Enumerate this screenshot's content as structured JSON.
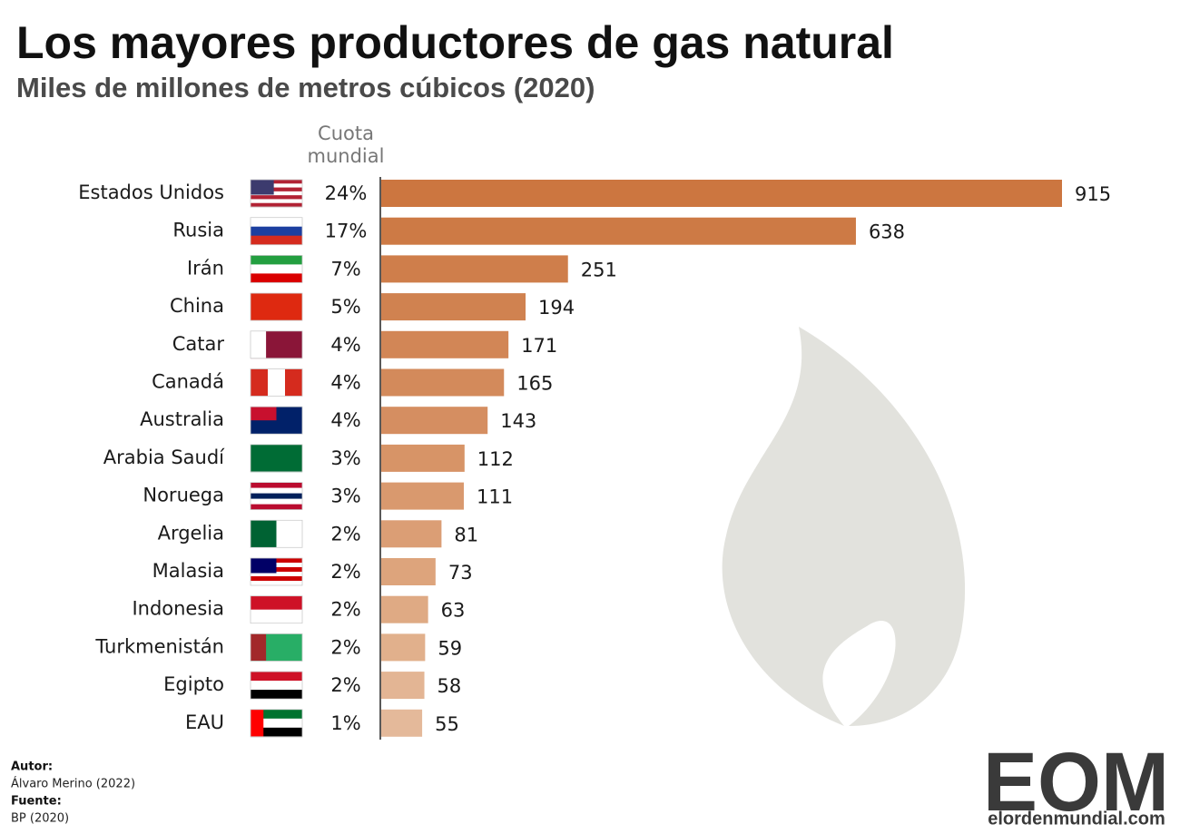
{
  "chart_data": {
    "type": "bar",
    "orientation": "horizontal",
    "title": "Los mayores productores de gas natural",
    "subtitle": "Miles de millones de metros cúbicos (2020)",
    "share_header": [
      "Cuota",
      "mundial"
    ],
    "categories": [
      "Estados Unidos",
      "Rusia",
      "Irán",
      "China",
      "Catar",
      "Canadá",
      "Australia",
      "Arabia Saudí",
      "Noruega",
      "Argelia",
      "Malasia",
      "Indonesia",
      "Turkmenistán",
      "Egipto",
      "EAU"
    ],
    "shares": [
      "24%",
      "17%",
      "7%",
      "5%",
      "4%",
      "4%",
      "4%",
      "3%",
      "3%",
      "2%",
      "2%",
      "2%",
      "2%",
      "2%",
      "1%"
    ],
    "values": [
      915,
      638,
      251,
      194,
      171,
      165,
      143,
      112,
      111,
      81,
      73,
      63,
      59,
      58,
      55
    ],
    "colors": [
      "#cc7640",
      "#cd7a45",
      "#cf7e4b",
      "#d08250",
      "#d28656",
      "#d38a5b",
      "#d58e61",
      "#d79467",
      "#d9996e",
      "#db9e75",
      "#dda47c",
      "#dfaa84",
      "#e1b08c",
      "#e3b594",
      "#e4b99a"
    ],
    "footer": {
      "author_label": "Autor:",
      "author": "Álvaro Merino (2022)",
      "source_label": "Fuente:",
      "source": "BP (2020)"
    },
    "logo": {
      "mark": "EOM",
      "site": "elordenmundial.com"
    }
  }
}
